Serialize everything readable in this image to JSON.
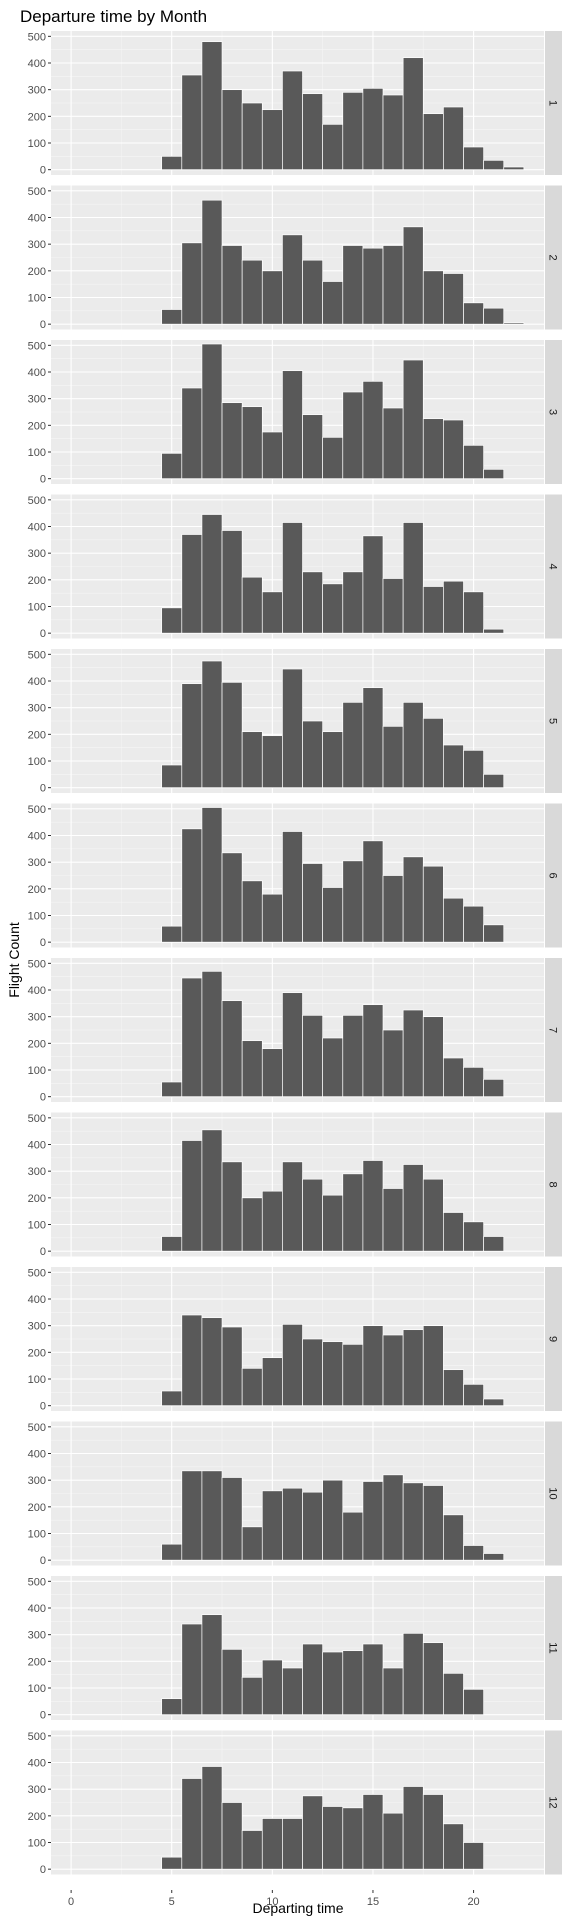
{
  "chart_data": {
    "type": "bar",
    "title": "Departure time by Month",
    "xlabel": "Departing time",
    "ylabel": "Flight Count",
    "x": [
      5,
      6,
      7,
      8,
      9,
      10,
      11,
      12,
      13,
      14,
      15,
      16,
      17,
      18,
      19,
      20,
      21,
      22
    ],
    "xlim": [
      -1,
      23.5
    ],
    "ylim": [
      -20,
      520
    ],
    "x_ticks": [
      "0",
      "5",
      "10",
      "15",
      "20"
    ],
    "y_ticks": [
      "0",
      "100",
      "200",
      "300",
      "400",
      "500"
    ],
    "grid": true,
    "bar_color": "#595959",
    "panel_background": "#ebebeb",
    "strip_background": "#d9d9d9",
    "facets": [
      {
        "label": "1",
        "values": [
          50,
          355,
          480,
          300,
          250,
          225,
          370,
          285,
          170,
          290,
          305,
          280,
          420,
          210,
          235,
          85,
          35,
          10
        ]
      },
      {
        "label": "2",
        "values": [
          55,
          305,
          465,
          295,
          240,
          200,
          335,
          240,
          160,
          295,
          285,
          295,
          365,
          200,
          190,
          80,
          60,
          5
        ]
      },
      {
        "label": "3",
        "values": [
          95,
          340,
          505,
          285,
          270,
          175,
          405,
          240,
          155,
          325,
          365,
          265,
          445,
          225,
          220,
          125,
          35,
          0
        ]
      },
      {
        "label": "4",
        "values": [
          95,
          370,
          445,
          385,
          210,
          155,
          415,
          230,
          185,
          230,
          365,
          205,
          415,
          175,
          195,
          155,
          15,
          0
        ]
      },
      {
        "label": "5",
        "values": [
          85,
          390,
          475,
          395,
          210,
          195,
          445,
          250,
          210,
          320,
          375,
          230,
          320,
          260,
          160,
          140,
          50,
          0
        ]
      },
      {
        "label": "6",
        "values": [
          60,
          425,
          505,
          335,
          230,
          180,
          415,
          295,
          205,
          305,
          380,
          250,
          320,
          285,
          165,
          135,
          65,
          0
        ]
      },
      {
        "label": "7",
        "values": [
          55,
          445,
          470,
          360,
          210,
          180,
          390,
          305,
          220,
          305,
          345,
          250,
          325,
          300,
          145,
          110,
          65,
          0
        ]
      },
      {
        "label": "8",
        "values": [
          55,
          415,
          455,
          335,
          200,
          225,
          335,
          270,
          210,
          290,
          340,
          235,
          325,
          270,
          145,
          110,
          55,
          0
        ]
      },
      {
        "label": "9",
        "values": [
          55,
          340,
          330,
          295,
          140,
          180,
          305,
          250,
          240,
          230,
          300,
          265,
          285,
          300,
          135,
          80,
          25,
          0
        ]
      },
      {
        "label": "10",
        "values": [
          60,
          335,
          335,
          310,
          125,
          260,
          270,
          255,
          300,
          180,
          295,
          320,
          290,
          280,
          170,
          55,
          25,
          0
        ]
      },
      {
        "label": "11",
        "values": [
          60,
          340,
          375,
          245,
          140,
          205,
          175,
          265,
          235,
          240,
          265,
          175,
          305,
          270,
          155,
          95,
          0,
          0
        ]
      },
      {
        "label": "12",
        "values": [
          45,
          340,
          385,
          250,
          145,
          190,
          190,
          275,
          235,
          230,
          280,
          210,
          310,
          280,
          170,
          100,
          0,
          0
        ]
      }
    ]
  }
}
